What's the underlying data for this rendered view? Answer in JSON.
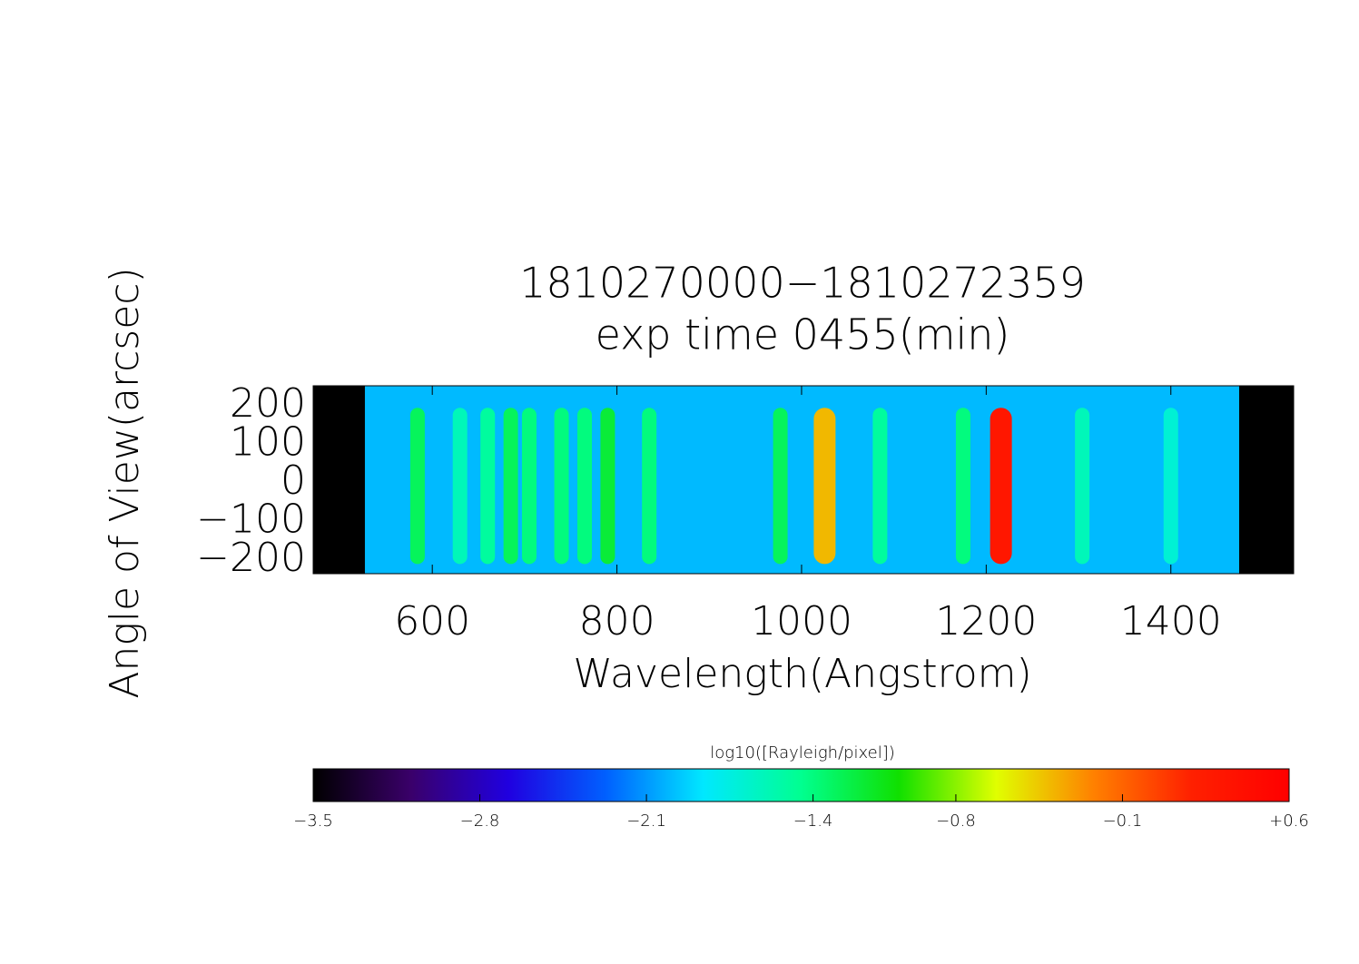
{
  "chart_data": {
    "type": "spectrogram",
    "title": [
      "1810270000−1810272359",
      "exp time 0455(min)"
    ],
    "xlabel": "Wavelength(Angstrom)",
    "ylabel": "Angle of View(arcsec)",
    "xlim": [
      471,
      1533
    ],
    "ylim": [
      -235,
      252
    ],
    "xticks": [
      600,
      800,
      1000,
      1200,
      1400
    ],
    "yticks": [
      200,
      100,
      0,
      {
        "value": -100,
        "label": "−100"
      },
      {
        "value": -200,
        "label": "−200"
      }
    ],
    "detector_range": [
      527,
      1474
    ],
    "background": -2.0,
    "line_span": [
      -210,
      195
    ],
    "x": [
      584,
      630,
      660,
      685,
      705,
      740,
      765,
      790,
      835,
      977,
      1025,
      1085,
      1175,
      1216,
      1304,
      1400
    ],
    "values": [
      -1.3,
      -1.6,
      -1.5,
      -1.3,
      -1.4,
      -1.4,
      -1.4,
      -1.2,
      -1.4,
      -1.3,
      -0.4,
      -1.5,
      -1.4,
      0.3,
      -1.6,
      -1.7
    ],
    "colorbar_label": "log10([Rayleigh/pixel])",
    "clim": [
      -3.5,
      0.6
    ],
    "cticks": [
      {
        "value": -3.5,
        "label": "−3.5"
      },
      {
        "value": -2.8,
        "label": "−2.8"
      },
      {
        "value": -2.1,
        "label": "−2.1"
      },
      {
        "value": -1.4,
        "label": "−1.4"
      },
      {
        "value": -0.8,
        "label": "−0.8"
      },
      {
        "value": -0.1,
        "label": "−0.1"
      },
      {
        "value": 0.6,
        "label": "+0.6"
      }
    ],
    "colormap": [
      "#000000",
      "#3a006a",
      "#2000e0",
      "#0060ff",
      "#00e8ff",
      "#00ff90",
      "#10e000",
      "#e0ff00",
      "#ff8000",
      "#ff2000",
      "#ff0000"
    ]
  }
}
